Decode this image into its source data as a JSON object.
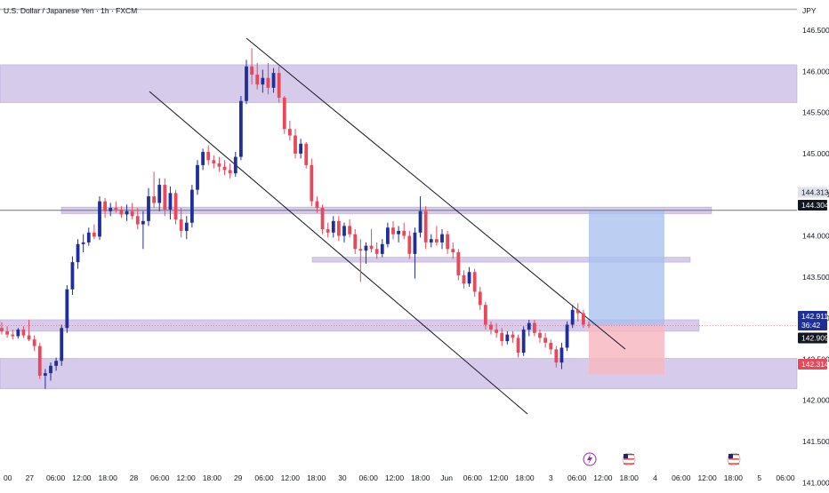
{
  "header": {
    "symbol_title": "U.S. Dollar / Japanese Yen · 1h · FXCM",
    "currency": "JPY"
  },
  "colors": {
    "up": "#1e2f97",
    "down": "#e8485a",
    "zone": "#c7b7e3",
    "target": "#a6bdee",
    "stop": "#f7b8c2",
    "axis_text": "#131722",
    "badge_gray": "#70737f",
    "badge_dark": "#131722",
    "badge_blue": "#1e2f97",
    "badge_red": "#e8485a"
  },
  "chart_data": {
    "type": "candlestick",
    "title": "U.S. Dollar / Japanese Yen · 1h · FXCM",
    "y_unit": "JPY",
    "ylim": [
      141.0,
      146.75
    ],
    "y_ticks": [
      "146.500",
      "146.000",
      "145.500",
      "145.000",
      "144.500",
      "144.000",
      "143.500",
      "143.000",
      "142.500",
      "142.000",
      "141.500",
      "141.000"
    ],
    "x_ticks": [
      "00",
      "27",
      "06:00",
      "12:00",
      "18:00",
      "28",
      "06:00",
      "12:00",
      "18:00",
      "29",
      "06:00",
      "12:00",
      "18:00",
      "30",
      "06:00",
      "12:00",
      "18:00",
      "Jun",
      "06:00",
      "12:00",
      "18:00",
      "3",
      "06:00",
      "12:00",
      "18:00",
      "4",
      "06:00",
      "12:00",
      "18:00",
      "5",
      "06:00"
    ],
    "price_labels": [
      {
        "value": "144.313",
        "style": "gray"
      },
      {
        "value": "144.304",
        "style": "dark"
      },
      {
        "value": "142.911",
        "style": "blue"
      },
      {
        "value": "36:42",
        "style": "blue"
      },
      {
        "value": "142.909",
        "style": "dark"
      },
      {
        "value": "142.314",
        "style": "red"
      }
    ],
    "horizontal_line": 144.31,
    "current_price": 142.91,
    "candles": [
      {
        "o": 142.88,
        "h": 142.95,
        "l": 142.8,
        "c": 142.84
      },
      {
        "o": 142.84,
        "h": 142.9,
        "l": 142.76,
        "c": 142.8
      },
      {
        "o": 142.8,
        "h": 142.86,
        "l": 142.74,
        "c": 142.78
      },
      {
        "o": 142.78,
        "h": 142.88,
        "l": 142.75,
        "c": 142.86
      },
      {
        "o": 142.86,
        "h": 142.9,
        "l": 142.76,
        "c": 142.79
      },
      {
        "o": 142.79,
        "h": 142.98,
        "l": 142.72,
        "c": 142.74
      },
      {
        "o": 142.74,
        "h": 142.79,
        "l": 142.6,
        "c": 142.66
      },
      {
        "o": 142.66,
        "h": 142.7,
        "l": 142.26,
        "c": 142.3
      },
      {
        "o": 142.3,
        "h": 142.38,
        "l": 142.14,
        "c": 142.33
      },
      {
        "o": 142.33,
        "h": 142.46,
        "l": 142.24,
        "c": 142.42
      },
      {
        "o": 142.42,
        "h": 142.52,
        "l": 142.36,
        "c": 142.48
      },
      {
        "o": 142.48,
        "h": 142.92,
        "l": 142.42,
        "c": 142.88
      },
      {
        "o": 142.88,
        "h": 143.4,
        "l": 142.82,
        "c": 143.35
      },
      {
        "o": 143.35,
        "h": 143.75,
        "l": 143.28,
        "c": 143.68
      },
      {
        "o": 143.68,
        "h": 143.96,
        "l": 143.6,
        "c": 143.9
      },
      {
        "o": 143.9,
        "h": 144.02,
        "l": 143.8,
        "c": 143.92
      },
      {
        "o": 143.92,
        "h": 144.1,
        "l": 143.88,
        "c": 144.04
      },
      {
        "o": 144.04,
        "h": 144.14,
        "l": 143.96,
        "c": 143.99
      },
      {
        "o": 143.99,
        "h": 144.48,
        "l": 143.95,
        "c": 144.42
      },
      {
        "o": 144.42,
        "h": 144.46,
        "l": 144.22,
        "c": 144.3
      },
      {
        "o": 144.3,
        "h": 144.4,
        "l": 144.24,
        "c": 144.34
      },
      {
        "o": 144.34,
        "h": 144.42,
        "l": 144.28,
        "c": 144.32
      },
      {
        "o": 144.32,
        "h": 144.36,
        "l": 144.22,
        "c": 144.26
      },
      {
        "o": 144.26,
        "h": 144.38,
        "l": 144.18,
        "c": 144.3
      },
      {
        "o": 144.3,
        "h": 144.4,
        "l": 144.2,
        "c": 144.24
      },
      {
        "o": 144.24,
        "h": 144.34,
        "l": 144.08,
        "c": 144.14
      },
      {
        "o": 144.14,
        "h": 144.3,
        "l": 143.84,
        "c": 144.18
      },
      {
        "o": 144.18,
        "h": 144.58,
        "l": 144.12,
        "c": 144.48
      },
      {
        "o": 144.48,
        "h": 144.78,
        "l": 144.34,
        "c": 144.4
      },
      {
        "o": 144.4,
        "h": 144.7,
        "l": 144.3,
        "c": 144.62
      },
      {
        "o": 144.62,
        "h": 144.7,
        "l": 144.24,
        "c": 144.32
      },
      {
        "o": 144.32,
        "h": 144.6,
        "l": 144.2,
        "c": 144.52
      },
      {
        "o": 144.52,
        "h": 144.56,
        "l": 144.14,
        "c": 144.2
      },
      {
        "o": 144.2,
        "h": 144.34,
        "l": 143.98,
        "c": 144.06
      },
      {
        "o": 144.06,
        "h": 144.24,
        "l": 143.96,
        "c": 144.16
      },
      {
        "o": 144.16,
        "h": 144.62,
        "l": 144.1,
        "c": 144.56
      },
      {
        "o": 144.56,
        "h": 144.92,
        "l": 144.5,
        "c": 144.86
      },
      {
        "o": 144.86,
        "h": 145.06,
        "l": 144.8,
        "c": 145.02
      },
      {
        "o": 145.02,
        "h": 145.1,
        "l": 144.86,
        "c": 144.92
      },
      {
        "o": 144.92,
        "h": 144.98,
        "l": 144.82,
        "c": 144.88
      },
      {
        "o": 144.88,
        "h": 144.96,
        "l": 144.78,
        "c": 144.84
      },
      {
        "o": 144.84,
        "h": 144.92,
        "l": 144.74,
        "c": 144.8
      },
      {
        "o": 144.8,
        "h": 144.88,
        "l": 144.7,
        "c": 144.76
      },
      {
        "o": 144.76,
        "h": 145.02,
        "l": 144.72,
        "c": 144.96
      },
      {
        "o": 144.96,
        "h": 145.7,
        "l": 144.92,
        "c": 145.64
      },
      {
        "o": 145.64,
        "h": 146.14,
        "l": 145.6,
        "c": 146.06
      },
      {
        "o": 146.06,
        "h": 146.28,
        "l": 145.84,
        "c": 145.96
      },
      {
        "o": 145.96,
        "h": 146.1,
        "l": 145.78,
        "c": 145.84
      },
      {
        "o": 145.84,
        "h": 146.02,
        "l": 145.74,
        "c": 145.92
      },
      {
        "o": 145.92,
        "h": 146.1,
        "l": 145.72,
        "c": 145.8
      },
      {
        "o": 145.8,
        "h": 146.04,
        "l": 145.74,
        "c": 145.98
      },
      {
        "o": 145.98,
        "h": 146.06,
        "l": 145.62,
        "c": 145.68
      },
      {
        "o": 145.68,
        "h": 145.7,
        "l": 145.24,
        "c": 145.3
      },
      {
        "o": 145.3,
        "h": 145.4,
        "l": 145.16,
        "c": 145.22
      },
      {
        "o": 145.22,
        "h": 145.3,
        "l": 144.94,
        "c": 145.0
      },
      {
        "o": 145.0,
        "h": 145.18,
        "l": 144.94,
        "c": 145.12
      },
      {
        "o": 145.12,
        "h": 145.14,
        "l": 144.82,
        "c": 144.86
      },
      {
        "o": 144.86,
        "h": 144.94,
        "l": 144.36,
        "c": 144.42
      },
      {
        "o": 144.42,
        "h": 144.48,
        "l": 144.28,
        "c": 144.34
      },
      {
        "o": 144.34,
        "h": 144.38,
        "l": 144.02,
        "c": 144.08
      },
      {
        "o": 144.08,
        "h": 144.16,
        "l": 143.98,
        "c": 144.04
      },
      {
        "o": 144.04,
        "h": 144.24,
        "l": 143.98,
        "c": 144.18
      },
      {
        "o": 144.18,
        "h": 144.24,
        "l": 143.94,
        "c": 144.0
      },
      {
        "o": 144.0,
        "h": 144.16,
        "l": 143.92,
        "c": 144.12
      },
      {
        "o": 144.12,
        "h": 144.2,
        "l": 143.98,
        "c": 144.02
      },
      {
        "o": 144.02,
        "h": 144.08,
        "l": 143.78,
        "c": 143.84
      },
      {
        "o": 143.84,
        "h": 143.96,
        "l": 143.44,
        "c": 143.82
      },
      {
        "o": 143.82,
        "h": 143.92,
        "l": 143.66,
        "c": 143.88
      },
      {
        "o": 143.88,
        "h": 144.08,
        "l": 143.8,
        "c": 143.84
      },
      {
        "o": 143.84,
        "h": 143.92,
        "l": 143.72,
        "c": 143.78
      },
      {
        "o": 143.78,
        "h": 143.96,
        "l": 143.74,
        "c": 143.9
      },
      {
        "o": 143.9,
        "h": 144.16,
        "l": 143.86,
        "c": 144.1
      },
      {
        "o": 144.1,
        "h": 144.18,
        "l": 143.96,
        "c": 144.02
      },
      {
        "o": 144.02,
        "h": 144.12,
        "l": 143.92,
        "c": 144.06
      },
      {
        "o": 144.06,
        "h": 144.16,
        "l": 143.96,
        "c": 144.0
      },
      {
        "o": 144.0,
        "h": 144.06,
        "l": 143.72,
        "c": 143.78
      },
      {
        "o": 143.78,
        "h": 144.1,
        "l": 143.48,
        "c": 144.04
      },
      {
        "o": 144.04,
        "h": 144.48,
        "l": 143.98,
        "c": 144.3
      },
      {
        "o": 144.3,
        "h": 144.36,
        "l": 143.84,
        "c": 143.92
      },
      {
        "o": 143.92,
        "h": 144.02,
        "l": 143.86,
        "c": 143.96
      },
      {
        "o": 143.96,
        "h": 144.12,
        "l": 143.88,
        "c": 143.92
      },
      {
        "o": 143.92,
        "h": 144.08,
        "l": 143.84,
        "c": 144.02
      },
      {
        "o": 144.02,
        "h": 144.06,
        "l": 143.78,
        "c": 143.84
      },
      {
        "o": 143.84,
        "h": 143.92,
        "l": 143.72,
        "c": 143.8
      },
      {
        "o": 143.8,
        "h": 143.84,
        "l": 143.46,
        "c": 143.52
      },
      {
        "o": 143.52,
        "h": 143.58,
        "l": 143.36,
        "c": 143.42
      },
      {
        "o": 143.42,
        "h": 143.62,
        "l": 143.38,
        "c": 143.56
      },
      {
        "o": 143.56,
        "h": 143.6,
        "l": 143.26,
        "c": 143.32
      },
      {
        "o": 143.32,
        "h": 143.38,
        "l": 143.1,
        "c": 143.16
      },
      {
        "o": 143.16,
        "h": 143.2,
        "l": 142.86,
        "c": 142.92
      },
      {
        "o": 142.92,
        "h": 142.96,
        "l": 142.8,
        "c": 142.86
      },
      {
        "o": 142.86,
        "h": 142.94,
        "l": 142.76,
        "c": 142.82
      },
      {
        "o": 142.82,
        "h": 142.88,
        "l": 142.66,
        "c": 142.72
      },
      {
        "o": 142.72,
        "h": 142.84,
        "l": 142.68,
        "c": 142.8
      },
      {
        "o": 142.8,
        "h": 142.84,
        "l": 142.7,
        "c": 142.76
      },
      {
        "o": 142.76,
        "h": 142.8,
        "l": 142.52,
        "c": 142.58
      },
      {
        "o": 142.58,
        "h": 142.9,
        "l": 142.54,
        "c": 142.86
      },
      {
        "o": 142.86,
        "h": 142.98,
        "l": 142.78,
        "c": 142.94
      },
      {
        "o": 142.94,
        "h": 142.98,
        "l": 142.78,
        "c": 142.82
      },
      {
        "o": 142.82,
        "h": 142.86,
        "l": 142.7,
        "c": 142.76
      },
      {
        "o": 142.76,
        "h": 142.82,
        "l": 142.64,
        "c": 142.7
      },
      {
        "o": 142.7,
        "h": 142.74,
        "l": 142.56,
        "c": 142.62
      },
      {
        "o": 142.62,
        "h": 142.66,
        "l": 142.4,
        "c": 142.46
      },
      {
        "o": 142.46,
        "h": 142.7,
        "l": 142.38,
        "c": 142.64
      },
      {
        "o": 142.64,
        "h": 142.96,
        "l": 142.6,
        "c": 142.92
      },
      {
        "o": 142.92,
        "h": 143.16,
        "l": 142.88,
        "c": 143.1
      },
      {
        "o": 143.1,
        "h": 143.18,
        "l": 142.96,
        "c": 143.06
      },
      {
        "o": 143.06,
        "h": 143.1,
        "l": 142.88,
        "c": 142.92
      },
      {
        "o": 142.92,
        "h": 142.96,
        "l": 142.88,
        "c": 142.91
      }
    ],
    "zones": [
      {
        "name": "resistance-zone-top",
        "from": 145.62,
        "to": 146.08
      },
      {
        "name": "resistance-zone-144",
        "from": 144.27,
        "to": 144.35
      },
      {
        "name": "resistance-zone-143-7",
        "from": 143.68,
        "to": 143.74
      },
      {
        "name": "support-zone-142-9",
        "from": 142.84,
        "to": 142.98
      },
      {
        "name": "support-zone-142-3",
        "from": 142.14,
        "to": 142.51
      }
    ],
    "position": {
      "type": "long",
      "entry": 142.911,
      "target": 144.304,
      "stop": 142.314
    }
  }
}
